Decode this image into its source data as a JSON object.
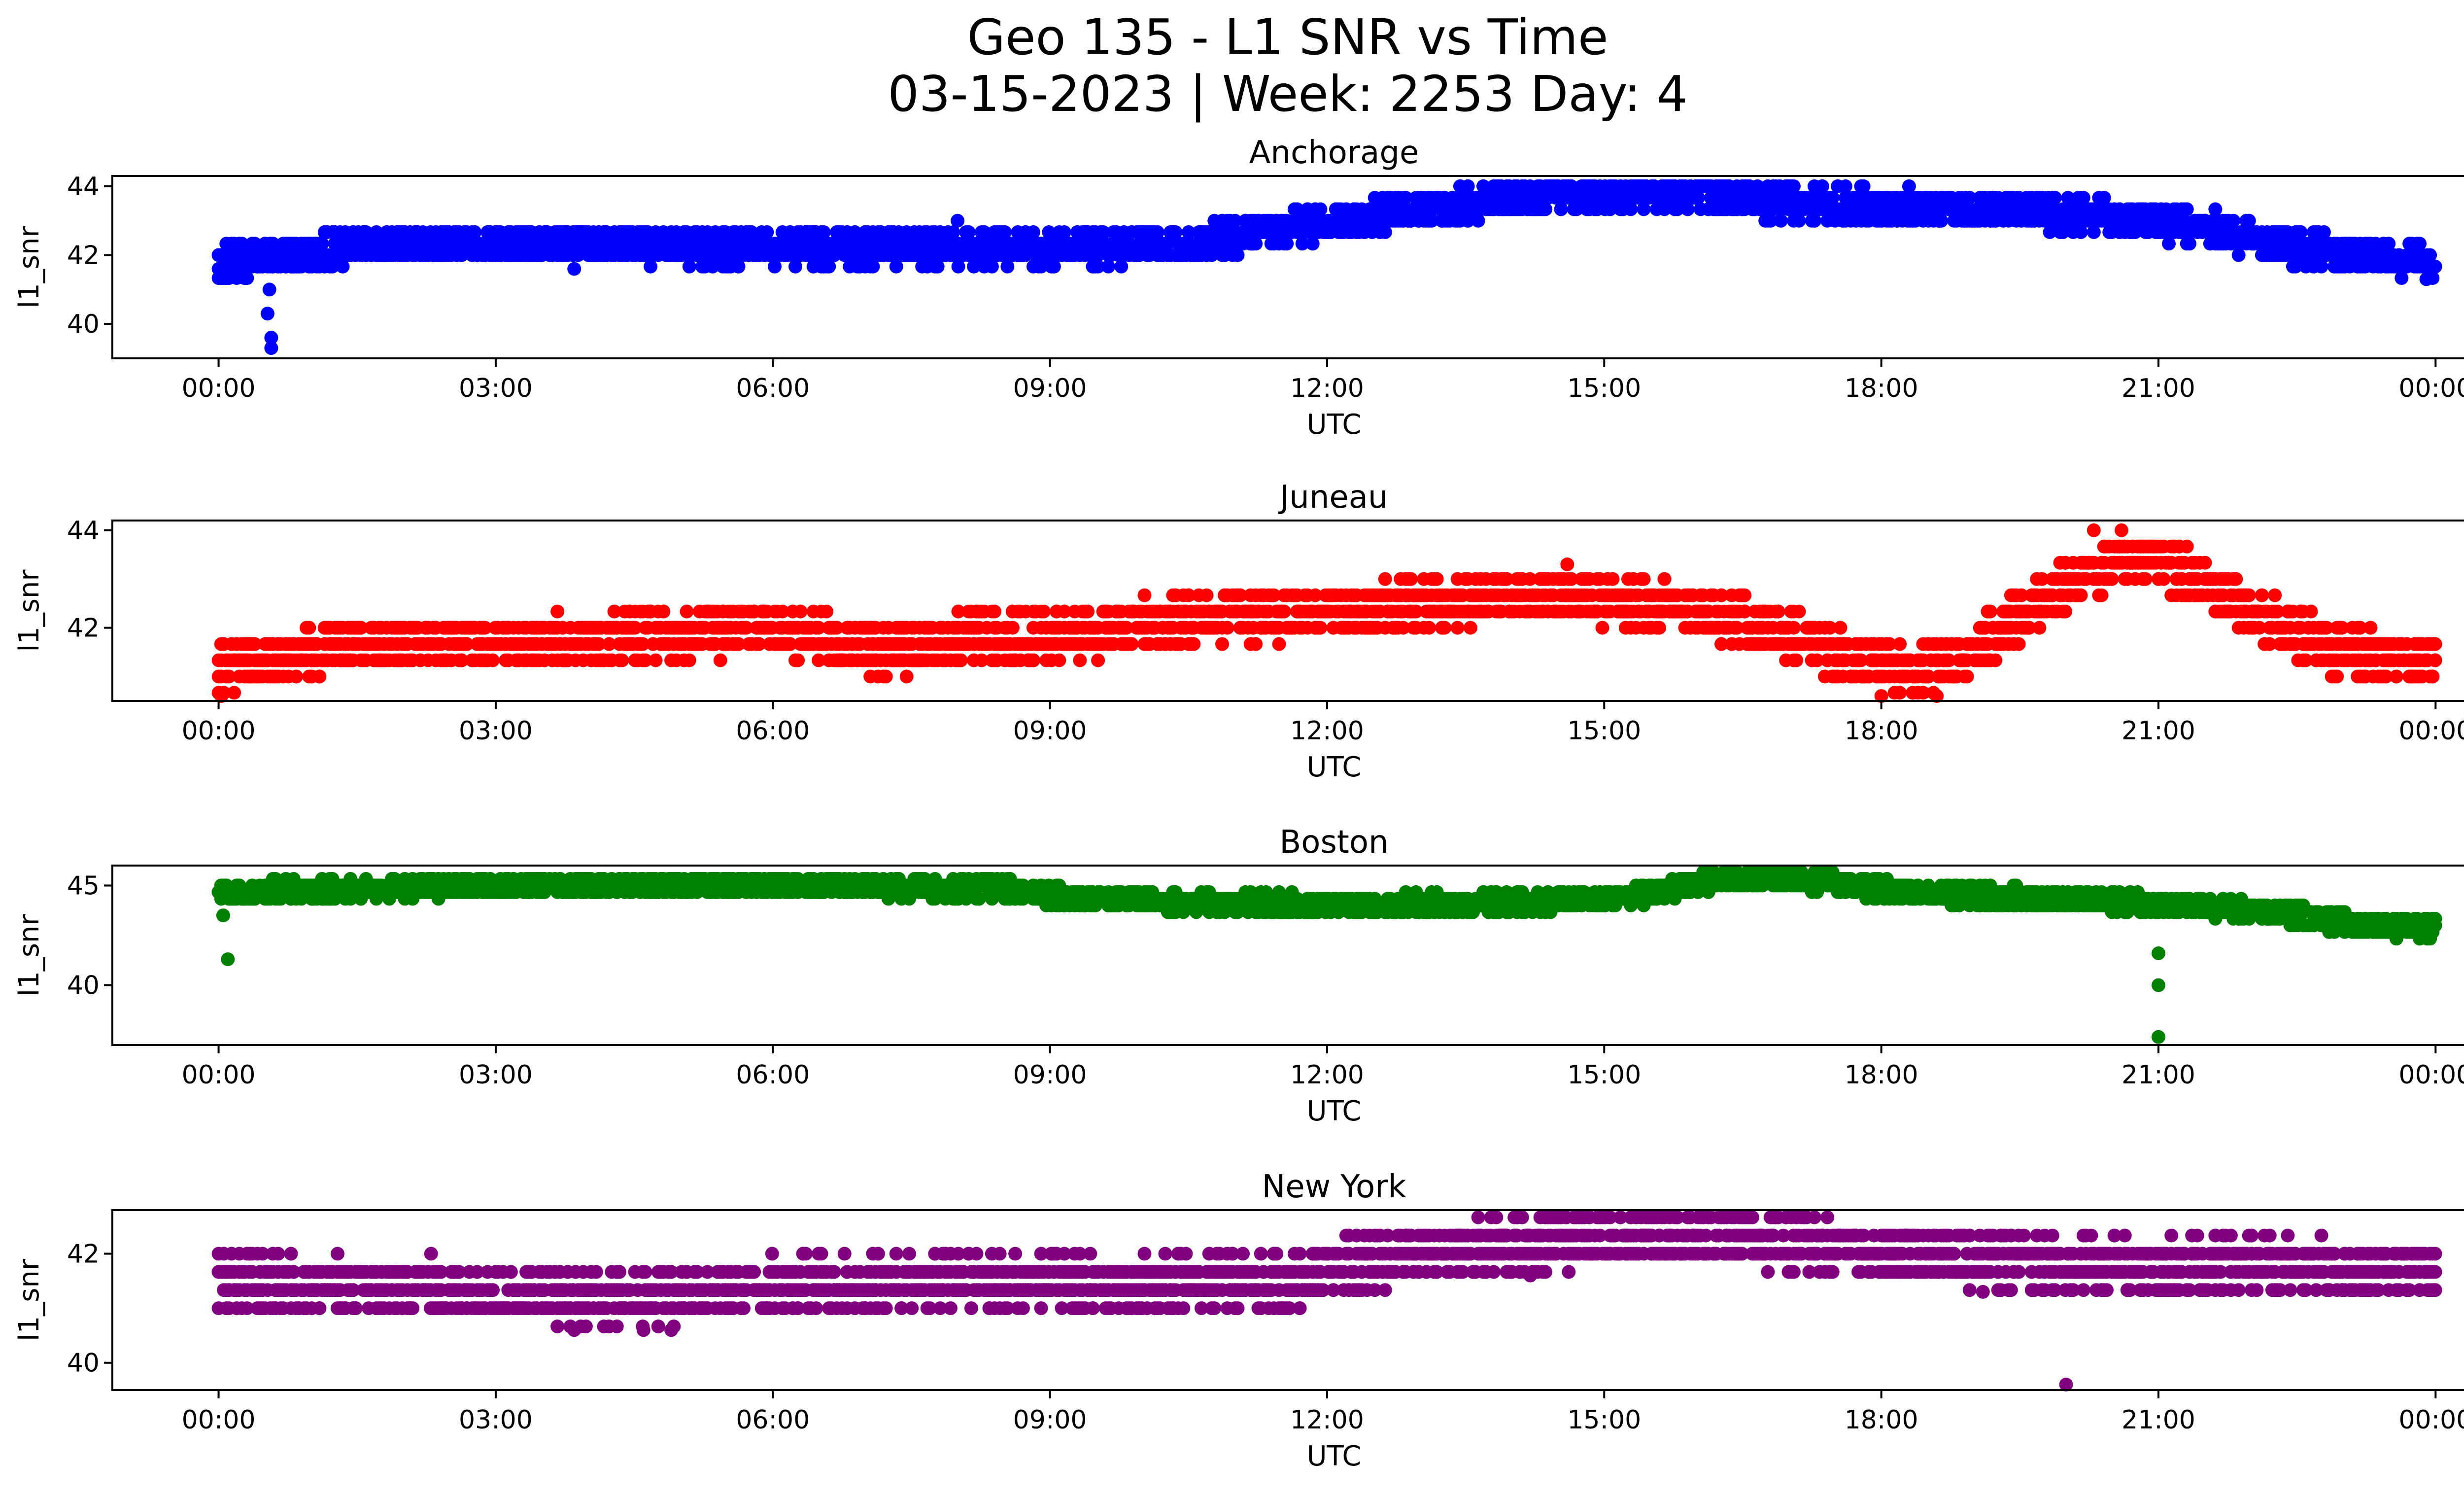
{
  "figure": {
    "title_line1": "Geo 135 - L1 SNR vs Time",
    "title_line2": "03-15-2023 | Week: 2253 Day: 4"
  },
  "chart_data": [
    {
      "type": "scatter",
      "title": "Anchorage",
      "xlabel": "UTC",
      "ylabel": "l1_snr",
      "color": "#0000ff",
      "xlim": [
        -1.15,
        25.3
      ],
      "ylim": [
        39.0,
        44.3
      ],
      "yticks": [
        40,
        42,
        44
      ],
      "xticks": [
        "00:00",
        "03:00",
        "06:00",
        "09:00",
        "12:00",
        "15:00",
        "18:00",
        "21:00",
        "00:00"
      ],
      "trend": [
        [
          0,
          41.7
        ],
        [
          0.3,
          41.9
        ],
        [
          0.8,
          42.0
        ],
        [
          1.5,
          42.3
        ],
        [
          3,
          42.3
        ],
        [
          6,
          42.2
        ],
        [
          9,
          42.2
        ],
        [
          10.5,
          42.3
        ],
        [
          11.5,
          42.8
        ],
        [
          13,
          43.3
        ],
        [
          14.5,
          43.8
        ],
        [
          15.5,
          43.9
        ],
        [
          16.5,
          43.6
        ],
        [
          18,
          43.4
        ],
        [
          19.5,
          43.3
        ],
        [
          20.5,
          43.1
        ],
        [
          21.5,
          42.8
        ],
        [
          22.5,
          42.2
        ],
        [
          24,
          41.8
        ]
      ],
      "outliers": [
        {
          "x": 0.0,
          "y": 41.6
        },
        {
          "x": 0.55,
          "y": 41.0
        },
        {
          "x": 0.53,
          "y": 40.3
        },
        {
          "x": 0.57,
          "y": 39.6
        },
        {
          "x": 0.57,
          "y": 39.3
        },
        {
          "x": 3.85,
          "y": 41.6
        },
        {
          "x": 8.0,
          "y": 43.0
        },
        {
          "x": 18.3,
          "y": 44.0
        },
        {
          "x": 16.9,
          "y": 44.0
        },
        {
          "x": 23.9,
          "y": 41.3
        }
      ]
    },
    {
      "type": "scatter",
      "title": "Juneau",
      "xlabel": "UTC",
      "ylabel": "l1_snr",
      "color": "#ff0000",
      "xlim": [
        -1.15,
        25.3
      ],
      "ylim": [
        40.5,
        44.2
      ],
      "yticks": [
        42,
        44
      ],
      "xticks": [
        "00:00",
        "03:00",
        "06:00",
        "09:00",
        "12:00",
        "15:00",
        "18:00",
        "21:00",
        "00:00"
      ],
      "trend": [
        [
          0,
          41.2
        ],
        [
          0.8,
          41.4
        ],
        [
          1.5,
          41.7
        ],
        [
          3,
          41.7
        ],
        [
          4.5,
          41.8
        ],
        [
          6,
          42.0
        ],
        [
          7.2,
          41.5
        ],
        [
          8.3,
          41.9
        ],
        [
          9,
          41.8
        ],
        [
          10.5,
          42.2
        ],
        [
          12,
          42.3
        ],
        [
          13.5,
          42.6
        ],
        [
          15,
          42.6
        ],
        [
          16.5,
          42.2
        ],
        [
          17.5,
          41.5
        ],
        [
          18.2,
          41.1
        ],
        [
          18.7,
          41.2
        ],
        [
          19.5,
          42.2
        ],
        [
          20,
          42.9
        ],
        [
          20.7,
          43.5
        ],
        [
          21.2,
          43.2
        ],
        [
          22,
          42.3
        ],
        [
          22.8,
          41.6
        ],
        [
          24,
          41.3
        ]
      ],
      "outliers": [
        {
          "x": 0.03,
          "y": 40.6
        },
        {
          "x": 14.6,
          "y": 43.3
        },
        {
          "x": 20.3,
          "y": 44.0
        },
        {
          "x": 20.6,
          "y": 44.0
        },
        {
          "x": 18.0,
          "y": 40.6
        },
        {
          "x": 18.6,
          "y": 40.6
        }
      ]
    },
    {
      "type": "scatter",
      "title": "Boston",
      "xlabel": "UTC",
      "ylabel": "l1_snr",
      "color": "#008000",
      "xlim": [
        -1.15,
        25.3
      ],
      "ylim": [
        37.0,
        46.0
      ],
      "yticks": [
        40,
        45
      ],
      "xticks": [
        "00:00",
        "03:00",
        "06:00",
        "09:00",
        "12:00",
        "15:00",
        "18:00",
        "21:00",
        "00:00"
      ],
      "trend": [
        [
          0,
          44.7
        ],
        [
          1.5,
          44.8
        ],
        [
          3,
          45.0
        ],
        [
          4.5,
          45.0
        ],
        [
          6,
          45.0
        ],
        [
          7.5,
          44.9
        ],
        [
          8.5,
          44.8
        ],
        [
          9.2,
          44.4
        ],
        [
          10.5,
          44.2
        ],
        [
          12,
          44.0
        ],
        [
          14.5,
          44.2
        ],
        [
          15.5,
          44.6
        ],
        [
          16.2,
          45.3
        ],
        [
          17.2,
          45.3
        ],
        [
          18,
          44.8
        ],
        [
          19,
          44.5
        ],
        [
          20.5,
          44.2
        ],
        [
          21.5,
          44.0
        ],
        [
          22.5,
          43.5
        ],
        [
          23,
          43.1
        ],
        [
          24,
          42.8
        ]
      ],
      "outliers": [
        {
          "x": 0.1,
          "y": 41.3
        },
        {
          "x": 0.05,
          "y": 43.5
        },
        {
          "x": 21.0,
          "y": 41.6
        },
        {
          "x": 21.0,
          "y": 40.0
        },
        {
          "x": 21.0,
          "y": 37.4
        }
      ]
    },
    {
      "type": "scatter",
      "title": "New York",
      "xlabel": "UTC",
      "ylabel": "l1_snr",
      "color": "#800080",
      "xlim": [
        -1.15,
        25.3
      ],
      "ylim": [
        39.5,
        42.8
      ],
      "yticks": [
        40,
        42
      ],
      "xticks": [
        "00:00",
        "03:00",
        "06:00",
        "09:00",
        "12:00",
        "15:00",
        "18:00",
        "21:00",
        "00:00"
      ],
      "trend": [
        [
          0,
          41.5
        ],
        [
          3,
          41.3
        ],
        [
          4.5,
          41.2
        ],
        [
          6,
          41.4
        ],
        [
          8,
          41.5
        ],
        [
          10,
          41.4
        ],
        [
          11.5,
          41.5
        ],
        [
          12.3,
          41.8
        ],
        [
          13.5,
          42.1
        ],
        [
          15,
          42.3
        ],
        [
          16.5,
          42.3
        ],
        [
          18,
          42.0
        ],
        [
          20,
          41.8
        ],
        [
          22,
          41.8
        ],
        [
          24,
          41.7
        ]
      ],
      "outliers": [
        {
          "x": 3.85,
          "y": 40.6
        },
        {
          "x": 4.9,
          "y": 40.6
        },
        {
          "x": 4.6,
          "y": 40.6
        },
        {
          "x": 20.0,
          "y": 39.6
        },
        {
          "x": 19.1,
          "y": 41.3
        },
        {
          "x": 2.3,
          "y": 42.0
        },
        {
          "x": 14.2,
          "y": 41.6
        }
      ]
    }
  ]
}
